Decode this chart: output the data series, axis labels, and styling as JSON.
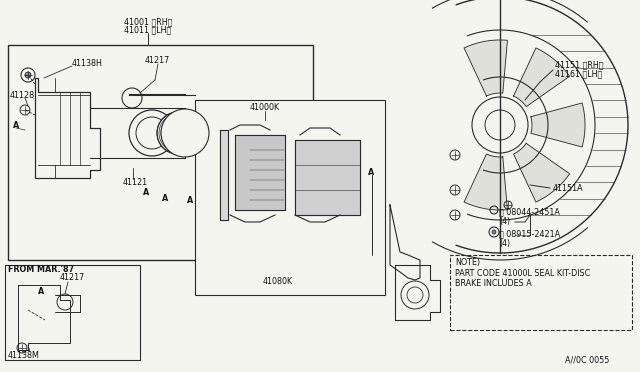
{
  "bg_color": "#f5f5f0",
  "line_color": "#2a2a2a",
  "text_color": "#111111",
  "border_color": "#555555",
  "figsize": [
    6.4,
    3.72
  ],
  "dpi": 100,
  "labels": {
    "part_41001": "41001 〈RH〉",
    "part_41011": "41011 〈LH〉",
    "part_41138H": "41138H",
    "part_41217": "41217",
    "part_41128": "41128",
    "part_41121": "41121",
    "part_41000K": "41000K",
    "part_41080K": "41080K",
    "part_41151_RH": "41151 〈RH〉",
    "part_41161_LH": "41161 〈LH〉",
    "part_41151A": "41151A",
    "part_bolt_B": "Ⓑ 08044-2451A",
    "part_bolt_B2": "(4)",
    "part_washer_W": "Ⓦ 08915-2421A",
    "part_washer_W2": "(4)",
    "note_line1": "NOTE)",
    "note_line2": "PART CODE 41000L SEAL KIT-DISC",
    "note_line3": "BRAKE INCLUDES A",
    "from_mar": "FROM MAR.'87",
    "part_41217b": "41217",
    "part_41138M": "41138M",
    "marker_A": "A",
    "diagram_code": "A//0C 0055"
  },
  "font_size": 6.5,
  "font_size_sm": 5.8
}
